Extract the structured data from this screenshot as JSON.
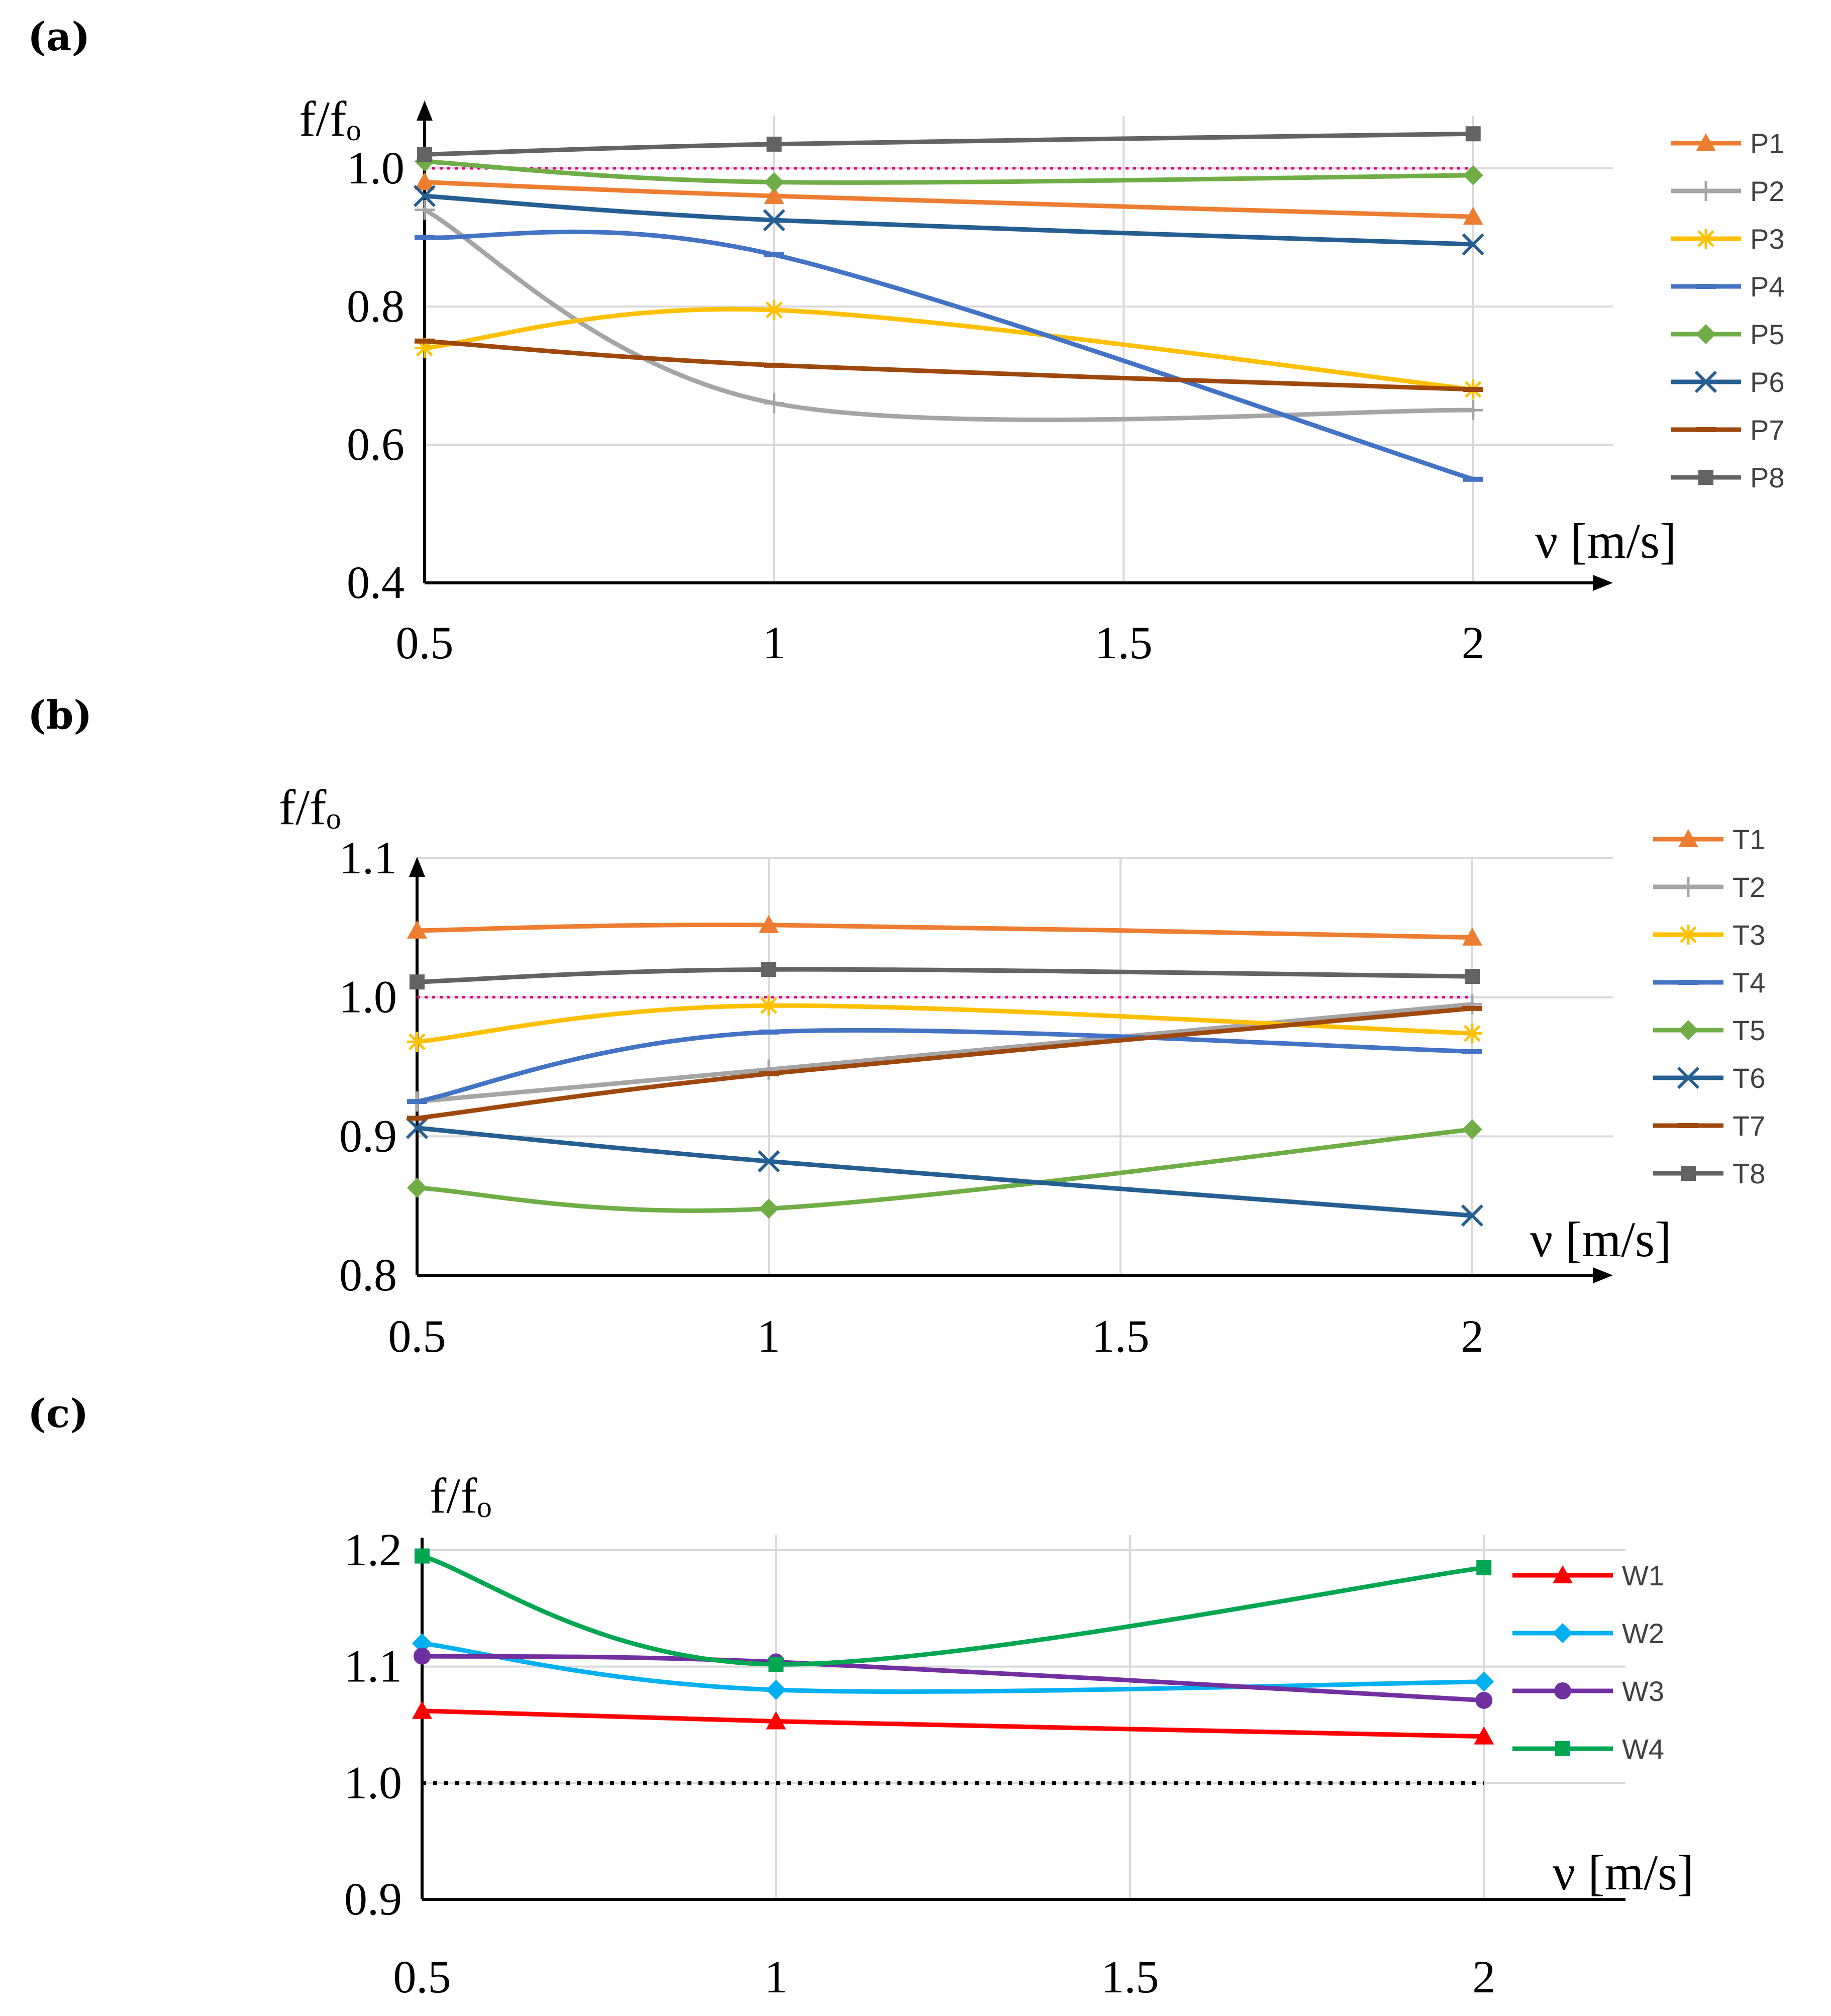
{
  "figure": {
    "panels": [
      "(a)",
      "(b)",
      "(c)"
    ]
  },
  "chart_data": [
    {
      "type": "line",
      "panel_label": "(a)",
      "ylabel": "f/fₒ",
      "xlabel": "ν [m/s]",
      "x": [
        0.5,
        1,
        2
      ],
      "x_ticks": [
        "0.5",
        "1",
        "1.5",
        "2"
      ],
      "x_tick_values": [
        0.5,
        1,
        1.5,
        2
      ],
      "y_ticks": [
        "0.4",
        "0.6",
        "0.8",
        "1.0"
      ],
      "y_tick_values": [
        0.4,
        0.6,
        0.8,
        1.0
      ],
      "xlim": [
        0.5,
        2.2
      ],
      "ylim": [
        0.4,
        1.1
      ],
      "grid": true,
      "legend_position": "right",
      "reference_line": {
        "y": 1.0,
        "color": "#e6007e",
        "style": "dotted"
      },
      "series": [
        {
          "name": "P1",
          "color": "#ed7d31",
          "marker": "triangle",
          "values": [
            0.98,
            0.96,
            0.93
          ]
        },
        {
          "name": "P2",
          "color": "#a5a5a5",
          "marker": "plus",
          "values": [
            0.94,
            0.66,
            0.65
          ]
        },
        {
          "name": "P3",
          "color": "#ffc000",
          "marker": "asterisk",
          "values": [
            0.74,
            0.795,
            0.68
          ]
        },
        {
          "name": "P4",
          "color": "#4472c4",
          "marker": "dash",
          "values": [
            0.9,
            0.875,
            0.55
          ]
        },
        {
          "name": "P5",
          "color": "#70ad47",
          "marker": "diamond",
          "values": [
            1.01,
            0.98,
            0.99
          ]
        },
        {
          "name": "P6",
          "color": "#255e91",
          "marker": "x",
          "values": [
            0.96,
            0.925,
            0.89
          ]
        },
        {
          "name": "P7",
          "color": "#9e480e",
          "marker": "dash",
          "values": [
            0.75,
            0.715,
            0.68
          ]
        },
        {
          "name": "P8",
          "color": "#636363",
          "marker": "square",
          "values": [
            1.02,
            1.035,
            1.05
          ]
        }
      ]
    },
    {
      "type": "line",
      "panel_label": "(b)",
      "ylabel": "f/fₒ",
      "xlabel": "ν [m/s]",
      "x": [
        0.5,
        1,
        2
      ],
      "x_ticks": [
        "0.5",
        "1",
        "1.5",
        "2"
      ],
      "x_tick_values": [
        0.5,
        1,
        1.5,
        2
      ],
      "y_ticks": [
        "0.8",
        "0.9",
        "1.0",
        "1.1"
      ],
      "y_tick_values": [
        0.8,
        0.9,
        1.0,
        1.1
      ],
      "xlim": [
        0.5,
        2.2
      ],
      "ylim": [
        0.8,
        1.1
      ],
      "grid": true,
      "legend_position": "right",
      "reference_line": {
        "y": 1.0,
        "color": "#e6007e",
        "style": "dotted"
      },
      "series": [
        {
          "name": "T1",
          "color": "#ed7d31",
          "marker": "triangle",
          "values": [
            1.048,
            1.052,
            1.043
          ]
        },
        {
          "name": "T2",
          "color": "#a5a5a5",
          "marker": "plus",
          "values": [
            0.925,
            0.948,
            0.995
          ]
        },
        {
          "name": "T3",
          "color": "#ffc000",
          "marker": "asterisk",
          "values": [
            0.968,
            0.994,
            0.974
          ]
        },
        {
          "name": "T4",
          "color": "#4472c4",
          "marker": "dash",
          "values": [
            0.925,
            0.975,
            0.961
          ]
        },
        {
          "name": "T5",
          "color": "#70ad47",
          "marker": "diamond",
          "values": [
            0.863,
            0.848,
            0.905
          ]
        },
        {
          "name": "T6",
          "color": "#255e91",
          "marker": "x",
          "values": [
            0.906,
            0.882,
            0.843
          ]
        },
        {
          "name": "T7",
          "color": "#9e480e",
          "marker": "dash",
          "values": [
            0.913,
            0.945,
            0.992
          ]
        },
        {
          "name": "T8",
          "color": "#636363",
          "marker": "square",
          "values": [
            1.011,
            1.02,
            1.015
          ]
        }
      ]
    },
    {
      "type": "line",
      "panel_label": "(c)",
      "ylabel": "f/fₒ",
      "xlabel": "ν [m/s]",
      "x": [
        0.5,
        1,
        2
      ],
      "x_ticks": [
        "0.5",
        "1",
        "1.5",
        "2"
      ],
      "x_tick_values": [
        0.5,
        1,
        1.5,
        2
      ],
      "y_ticks": [
        "0.9",
        "1.0",
        "1.1",
        "1.2"
      ],
      "y_tick_values": [
        0.9,
        1.0,
        1.1,
        1.2
      ],
      "xlim": [
        0.5,
        2.2
      ],
      "ylim": [
        0.9,
        1.2
      ],
      "grid": true,
      "legend_position": "right",
      "reference_line": {
        "y": 1.0,
        "color": "#000000",
        "style": "dotted"
      },
      "series": [
        {
          "name": "W1",
          "color": "#ff0000",
          "marker": "triangle",
          "values": [
            1.062,
            1.053,
            1.04
          ]
        },
        {
          "name": "W2",
          "color": "#00b0f0",
          "marker": "diamond",
          "values": [
            1.12,
            1.08,
            1.087
          ]
        },
        {
          "name": "W3",
          "color": "#7030a0",
          "marker": "circle",
          "values": [
            1.109,
            1.104,
            1.071
          ]
        },
        {
          "name": "W4",
          "color": "#00a651",
          "marker": "square",
          "values": [
            1.195,
            1.102,
            1.185
          ]
        }
      ]
    }
  ]
}
